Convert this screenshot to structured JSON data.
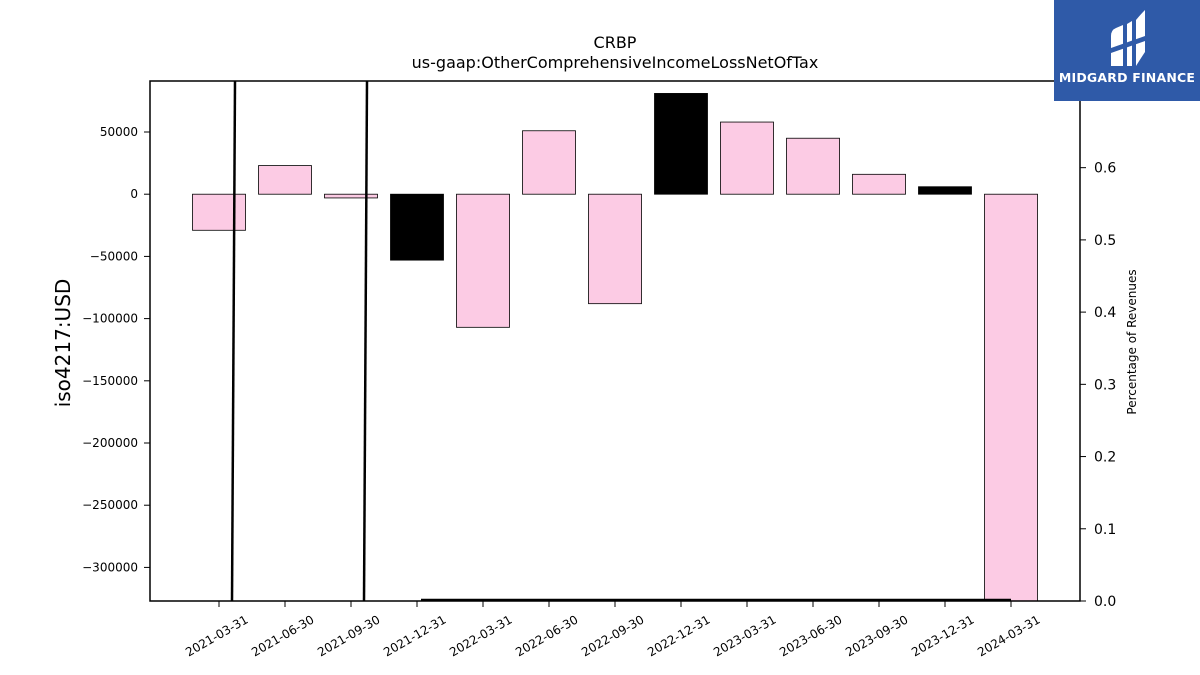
{
  "brand": {
    "name": "MIDGARD FINANCE",
    "icon": "midgard-logo-icon",
    "color": "#2f5aa8"
  },
  "chart_data": {
    "type": "bar",
    "title": "CRBP",
    "subtitle": "us-gaap:OtherComprehensiveIncomeLossNetOfTax",
    "ylabel": "iso4217:USD",
    "y2label": "Percentage of Revenues",
    "categories": [
      "2021-03-31",
      "2021-06-30",
      "2021-09-30",
      "2021-12-31",
      "2022-03-31",
      "2022-06-30",
      "2022-09-30",
      "2022-12-31",
      "2023-03-31",
      "2023-06-30",
      "2023-09-30",
      "2023-12-31",
      "2024-03-31"
    ],
    "values": [
      -29000,
      23000,
      -3000,
      -53000,
      -107000,
      51000,
      -88000,
      81000,
      58000,
      45000,
      16000,
      6000,
      -327000
    ],
    "bar_colors": [
      "#fccbe4",
      "#fccbe4",
      "#fccbe4",
      "#000000",
      "#fccbe4",
      "#fccbe4",
      "#fccbe4",
      "#000000",
      "#fccbe4",
      "#fccbe4",
      "#fccbe4",
      "#000000",
      "#fccbe4"
    ],
    "ylim": [
      -327000,
      91000
    ],
    "yticks": [
      50000,
      0,
      -50000,
      -100000,
      -150000,
      -200000,
      -250000,
      -300000
    ],
    "ytick_labels": [
      "50000",
      "0",
      "−50000",
      "−100000",
      "−150000",
      "−200000",
      "−250000",
      "−300000"
    ],
    "y2lim": [
      0,
      0.72
    ],
    "y2ticks": [
      0.0,
      0.1,
      0.2,
      0.3,
      0.4,
      0.5,
      0.6,
      0.7
    ],
    "y2tick_labels": [
      "0.0",
      "0.1",
      "0.2",
      "0.3",
      "0.4",
      "0.5",
      "0.6",
      "0.7"
    ],
    "pct_series": [
      {
        "x": [
          "2021-03-31",
          "2021-03-31"
        ],
        "y": [
          0,
          0.72
        ]
      },
      {
        "x": [
          "2021-09-30",
          "2021-09-30"
        ],
        "y": [
          0,
          0.72
        ]
      },
      {
        "x": [
          "2021-12-31",
          "2024-03-31"
        ],
        "y": [
          0,
          0
        ]
      }
    ],
    "grid": false
  }
}
